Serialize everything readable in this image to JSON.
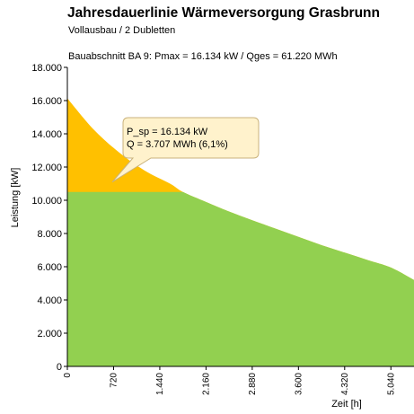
{
  "header": {
    "title": "Jahresdauerlinie Wärmeversorgung Grasbrunn",
    "subtitle": "Vollausbau / 2 Dubletten",
    "caption": "Bauabschnitt BA 9: Pmax = 16.134 kW / Qges = 61.220 MWh"
  },
  "chart_data": {
    "type": "area",
    "xlabel": "Zeit [h]",
    "ylabel": "Leistung [kW]",
    "xlim": [
      0,
      5400
    ],
    "ylim": [
      0,
      18000
    ],
    "x_ticks": [
      0,
      720,
      1440,
      2160,
      2880,
      3600,
      4320,
      5040
    ],
    "x_tick_labels": [
      "0",
      "720",
      "1.440",
      "2.160",
      "2.880",
      "3.600",
      "4.320",
      "5.040"
    ],
    "y_ticks": [
      0,
      2000,
      4000,
      6000,
      8000,
      10000,
      12000,
      14000,
      16000,
      18000
    ],
    "y_tick_labels": [
      "0",
      "2.000",
      "4.000",
      "6.000",
      "8.000",
      "10.000",
      "12.000",
      "14.000",
      "16.000",
      "18.000"
    ],
    "grid": false,
    "base_load": 10500,
    "series": [
      {
        "color": "#92d050",
        "x": [
          0,
          400,
          800,
          1200,
          1600,
          1800,
          2160,
          2500,
          2880,
          3240,
          3600,
          3960,
          4320,
          4680,
          5040,
          5400
        ],
        "y": [
          16134,
          14300,
          12900,
          11800,
          11000,
          10500,
          9900,
          9350,
          8800,
          8300,
          7800,
          7300,
          6850,
          6400,
          5950,
          5200
        ]
      },
      {
        "color": "#ffc000"
      }
    ],
    "annotation": {
      "line1": "P_sp = 16.134 kW",
      "line2": "Q = 3.707 MWh (6,1%)",
      "pointer_x": 700,
      "pointer_y": 11100,
      "fill": "#fff2cc",
      "border": "#c9b27c"
    }
  }
}
